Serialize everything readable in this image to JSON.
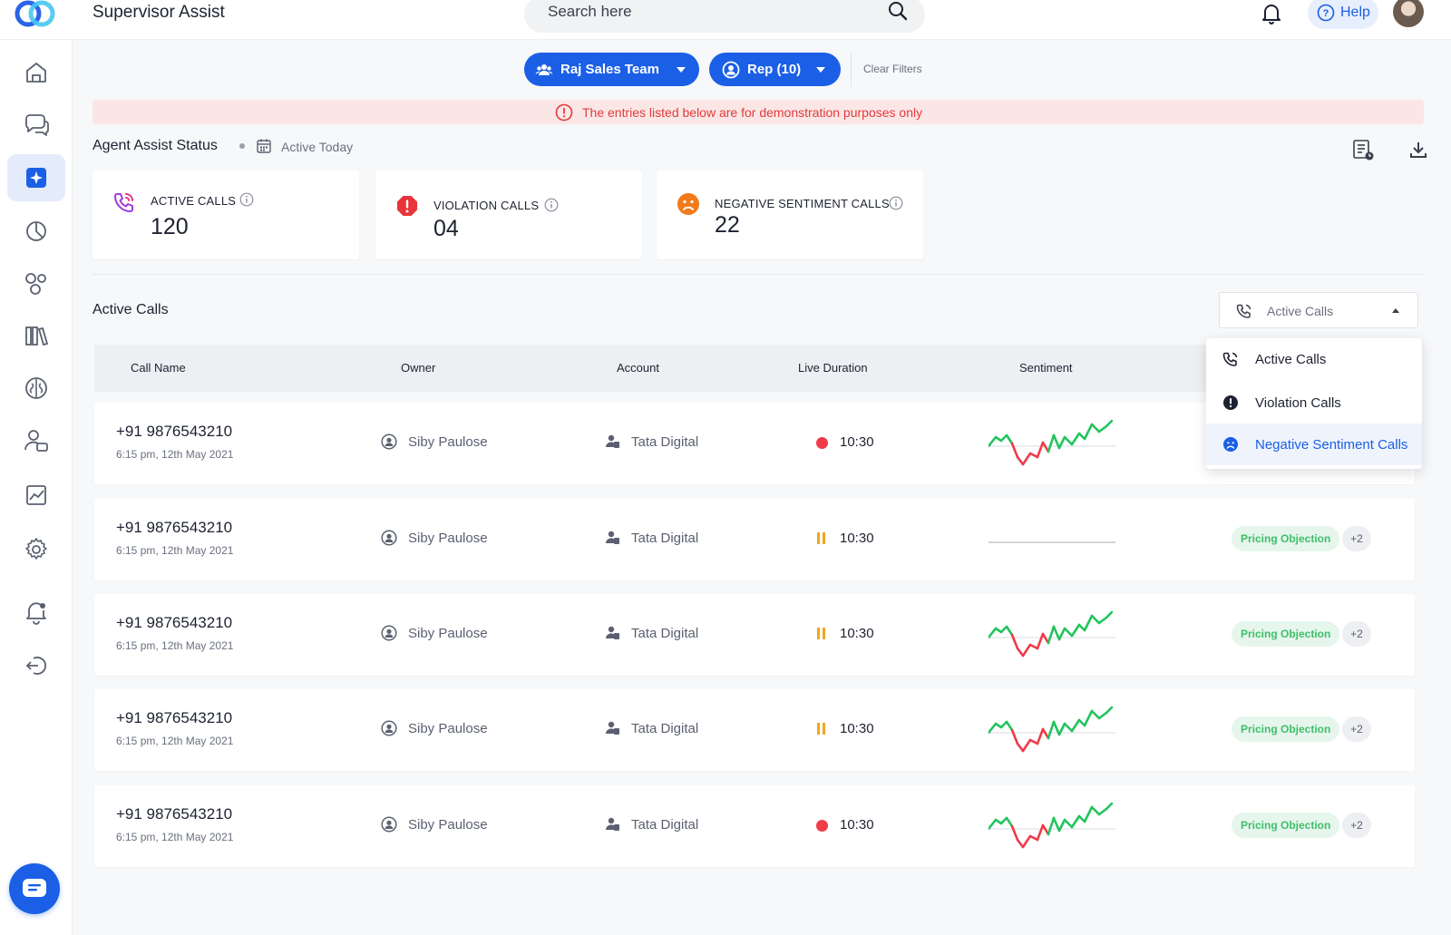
{
  "app": {
    "title": "Supervisor Assist"
  },
  "search": {
    "placeholder": "Search here"
  },
  "header": {
    "help_label": "Help"
  },
  "filters": {
    "team_label": "Raj Sales Team",
    "rep_label": "Rep (10)",
    "clear_label": "Clear Filters"
  },
  "banner": {
    "text": "The entries listed below are for demonstration purposes only"
  },
  "status": {
    "title": "Agent Assist Status",
    "period": "Active Today"
  },
  "stats": [
    {
      "label": "ACTIVE CALLS",
      "value": "120",
      "icon": "phone-call-icon",
      "color": "#a23be0"
    },
    {
      "label": "VIOLATION CALLS",
      "value": "04",
      "icon": "alert-octagon-icon",
      "color": "#e8343b"
    },
    {
      "label": "NEGATIVE SENTIMENT CALLS",
      "value": "22",
      "icon": "sad-face-icon",
      "color": "#f27a1a"
    }
  ],
  "calls_section": {
    "title": "Active Calls",
    "filter_value": "Active Calls",
    "columns": [
      "Call Name",
      "Owner",
      "Account",
      "Live Duration",
      "Sentiment"
    ],
    "menu_options": [
      "Active Calls",
      "Violation Calls",
      "Negative Sentiment Calls"
    ],
    "menu_selected": "Negative Sentiment Calls"
  },
  "rows": [
    {
      "phone": "+91 9876543210",
      "date": "6:15 pm, 12th May 2021",
      "owner": "Siby Paulose",
      "account": "Tata Digital",
      "status": "recording",
      "duration": "10:30",
      "sentiment": "wave",
      "tag": "",
      "more": ""
    },
    {
      "phone": "+91 9876543210",
      "date": "6:15 pm, 12th May 2021",
      "owner": "Siby Paulose",
      "account": "Tata Digital",
      "status": "paused",
      "duration": "10:30",
      "sentiment": "flat",
      "tag": "Pricing Objection",
      "more": "+2"
    },
    {
      "phone": "+91 9876543210",
      "date": "6:15 pm, 12th May 2021",
      "owner": "Siby Paulose",
      "account": "Tata Digital",
      "status": "paused",
      "duration": "10:30",
      "sentiment": "wave",
      "tag": "Pricing Objection",
      "more": "+2"
    },
    {
      "phone": "+91 9876543210",
      "date": "6:15 pm, 12th May 2021",
      "owner": "Siby Paulose",
      "account": "Tata Digital",
      "status": "paused",
      "duration": "10:30",
      "sentiment": "wave",
      "tag": "Pricing Objection",
      "more": "+2"
    },
    {
      "phone": "+91 9876543210",
      "date": "6:15 pm, 12th May 2021",
      "owner": "Siby Paulose",
      "account": "Tata Digital",
      "status": "recording",
      "duration": "10:30",
      "sentiment": "wave",
      "tag": "Pricing Objection",
      "more": "+2"
    }
  ],
  "colors": {
    "accent": "#1a5fe6",
    "positive": "#21c45d",
    "negative": "#ef3b4a",
    "paused": "#f3a51c",
    "banner_text": "#e23b3b"
  },
  "sidebar_icons": [
    "home-icon",
    "chat-icon",
    "assist-sparkle-icon",
    "pie-chart-icon",
    "bubbles-icon",
    "library-icon",
    "brain-icon",
    "people-icon",
    "trend-chart-icon",
    "settings-icon",
    "alert-bell-icon",
    "logout-icon"
  ]
}
